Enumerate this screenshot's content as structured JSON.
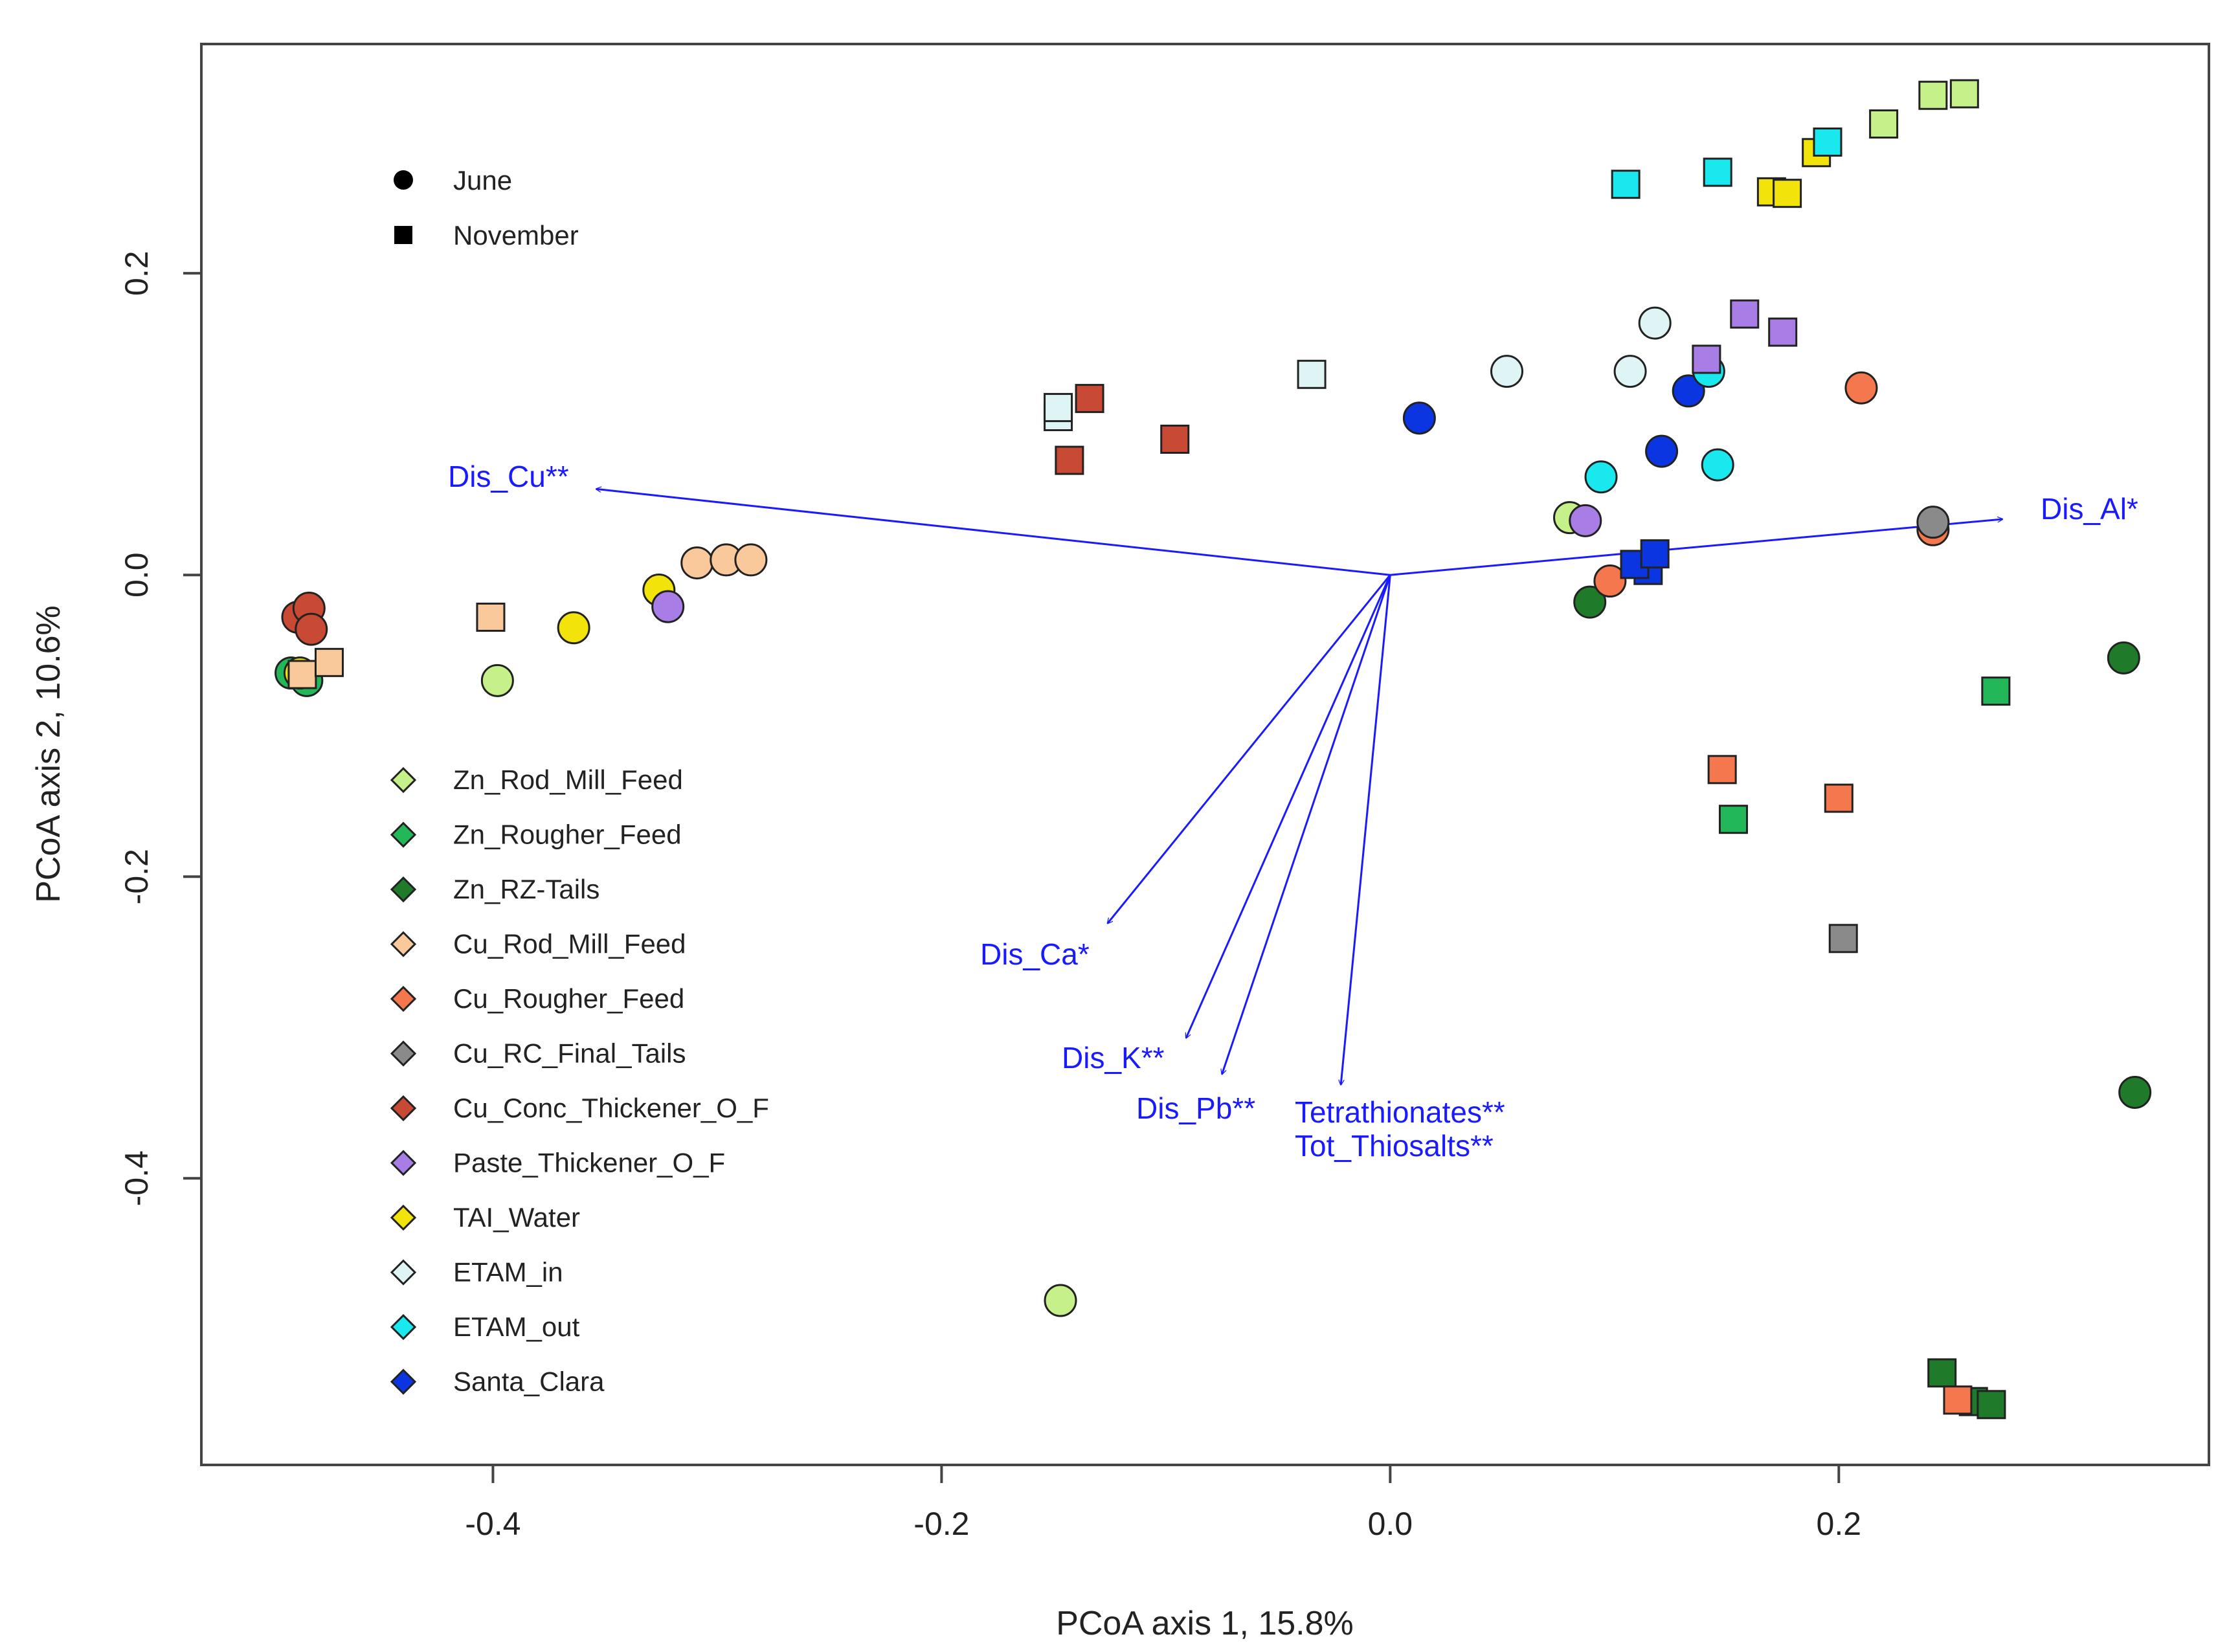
{
  "chart_data": {
    "type": "scatter",
    "title": "",
    "xlabel": "PCoA axis 1, 15.8%",
    "ylabel": "PCoA axis 2, 10.6%",
    "xlim": [
      -0.53,
      0.365
    ],
    "ylim": [
      -0.59,
      0.352
    ],
    "x_ticks": [
      -0.4,
      -0.2,
      0.0,
      0.2
    ],
    "x_tick_labels": [
      "-0.4",
      "-0.2",
      "0.0",
      "0.2"
    ],
    "y_ticks": [
      -0.4,
      -0.2,
      0.0,
      0.2
    ],
    "y_tick_labels": [
      "-0.4",
      "-0.2",
      "0.0",
      "0.2"
    ],
    "grid": false,
    "month_legend": [
      {
        "label": "June",
        "shape": "circle"
      },
      {
        "label": "November",
        "shape": "square"
      }
    ],
    "sample_types": [
      {
        "name": "Zn_Rod_Mill_Feed",
        "color": "#c5f08a"
      },
      {
        "name": "Zn_Rougher_Feed",
        "color": "#22b85a"
      },
      {
        "name": "Zn_RZ-Tails",
        "color": "#1f7a2a"
      },
      {
        "name": "Cu_Rod_Mill_Feed",
        "color": "#f9c99b"
      },
      {
        "name": "Cu_Rougher_Feed",
        "color": "#f4774d"
      },
      {
        "name": "Cu_RC_Final_Tails",
        "color": "#8a8a8a"
      },
      {
        "name": "Cu_Conc_Thickener_O_F",
        "color": "#c94a34"
      },
      {
        "name": "Paste_Thickener_O_F",
        "color": "#a87ee6"
      },
      {
        "name": "TAI_Water",
        "color": "#f2e40a"
      },
      {
        "name": "ETAM_in",
        "color": "#dff4f5"
      },
      {
        "name": "ETAM_out",
        "color": "#19e8ef"
      },
      {
        "name": "Santa_Clara",
        "color": "#0a35e0"
      }
    ],
    "points": [
      {
        "x": -0.49,
        "y": -0.065,
        "shape": "circle",
        "group": "Zn_Rougher_Feed"
      },
      {
        "x": -0.483,
        "y": -0.07,
        "shape": "circle",
        "group": "Zn_Rougher_Feed"
      },
      {
        "x": -0.486,
        "y": -0.065,
        "shape": "circle",
        "group": "TAI_Water"
      },
      {
        "x": -0.487,
        "y": -0.028,
        "shape": "circle",
        "group": "Cu_Conc_Thickener_O_F"
      },
      {
        "x": -0.482,
        "y": -0.022,
        "shape": "circle",
        "group": "Cu_Conc_Thickener_O_F"
      },
      {
        "x": -0.481,
        "y": -0.036,
        "shape": "circle",
        "group": "Cu_Conc_Thickener_O_F"
      },
      {
        "x": -0.485,
        "y": -0.066,
        "shape": "square",
        "group": "Cu_Rod_Mill_Feed"
      },
      {
        "x": -0.473,
        "y": -0.058,
        "shape": "square",
        "group": "Cu_Rod_Mill_Feed"
      },
      {
        "x": -0.401,
        "y": -0.028,
        "shape": "square",
        "group": "Cu_Rod_Mill_Feed"
      },
      {
        "x": -0.398,
        "y": -0.07,
        "shape": "circle",
        "group": "Zn_Rod_Mill_Feed"
      },
      {
        "x": -0.364,
        "y": -0.035,
        "shape": "circle",
        "group": "TAI_Water"
      },
      {
        "x": -0.326,
        "y": -0.01,
        "shape": "circle",
        "group": "TAI_Water"
      },
      {
        "x": -0.322,
        "y": -0.021,
        "shape": "circle",
        "group": "Paste_Thickener_O_F"
      },
      {
        "x": -0.309,
        "y": 0.008,
        "shape": "circle",
        "group": "Cu_Rod_Mill_Feed"
      },
      {
        "x": -0.296,
        "y": 0.01,
        "shape": "circle",
        "group": "Cu_Rod_Mill_Feed"
      },
      {
        "x": -0.285,
        "y": 0.01,
        "shape": "circle",
        "group": "Cu_Rod_Mill_Feed"
      },
      {
        "x": -0.148,
        "y": 0.105,
        "shape": "square",
        "group": "ETAM_in"
      },
      {
        "x": -0.148,
        "y": 0.111,
        "shape": "square",
        "group": "ETAM_in"
      },
      {
        "x": -0.134,
        "y": 0.117,
        "shape": "square",
        "group": "Cu_Conc_Thickener_O_F"
      },
      {
        "x": -0.143,
        "y": 0.076,
        "shape": "square",
        "group": "Cu_Conc_Thickener_O_F"
      },
      {
        "x": -0.096,
        "y": 0.09,
        "shape": "square",
        "group": "Cu_Conc_Thickener_O_F"
      },
      {
        "x": -0.035,
        "y": 0.133,
        "shape": "square",
        "group": "ETAM_in"
      },
      {
        "x": 0.013,
        "y": 0.104,
        "shape": "circle",
        "group": "Santa_Clara"
      },
      {
        "x": 0.052,
        "y": 0.135,
        "shape": "circle",
        "group": "ETAM_in"
      },
      {
        "x": -0.147,
        "y": -0.481,
        "shape": "circle",
        "group": "Zn_Rod_Mill_Feed"
      },
      {
        "x": 0.08,
        "y": 0.038,
        "shape": "circle",
        "group": "Zn_Rod_Mill_Feed"
      },
      {
        "x": 0.087,
        "y": 0.036,
        "shape": "circle",
        "group": "Paste_Thickener_O_F"
      },
      {
        "x": 0.094,
        "y": 0.065,
        "shape": "circle",
        "group": "ETAM_out"
      },
      {
        "x": 0.089,
        "y": -0.018,
        "shape": "circle",
        "group": "Zn_RZ-Tails"
      },
      {
        "x": 0.098,
        "y": -0.004,
        "shape": "circle",
        "group": "Cu_Rougher_Feed"
      },
      {
        "x": 0.107,
        "y": 0.135,
        "shape": "circle",
        "group": "ETAM_in"
      },
      {
        "x": 0.118,
        "y": 0.167,
        "shape": "circle",
        "group": "ETAM_in"
      },
      {
        "x": 0.121,
        "y": 0.082,
        "shape": "circle",
        "group": "Santa_Clara"
      },
      {
        "x": 0.133,
        "y": 0.122,
        "shape": "circle",
        "group": "Santa_Clara"
      },
      {
        "x": 0.142,
        "y": 0.135,
        "shape": "circle",
        "group": "ETAM_out"
      },
      {
        "x": 0.146,
        "y": 0.073,
        "shape": "circle",
        "group": "ETAM_out"
      },
      {
        "x": 0.21,
        "y": 0.124,
        "shape": "circle",
        "group": "Cu_Rougher_Feed"
      },
      {
        "x": 0.242,
        "y": 0.03,
        "shape": "circle",
        "group": "Cu_Rougher_Feed"
      },
      {
        "x": 0.242,
        "y": 0.035,
        "shape": "circle",
        "group": "Cu_RC_Final_Tails"
      },
      {
        "x": 0.327,
        "y": -0.055,
        "shape": "circle",
        "group": "Zn_RZ-Tails"
      },
      {
        "x": 0.332,
        "y": -0.343,
        "shape": "circle",
        "group": "Zn_RZ-Tails"
      },
      {
        "x": 0.105,
        "y": 0.259,
        "shape": "square",
        "group": "ETAM_out"
      },
      {
        "x": 0.146,
        "y": 0.267,
        "shape": "square",
        "group": "ETAM_out"
      },
      {
        "x": 0.17,
        "y": 0.254,
        "shape": "square",
        "group": "TAI_Water"
      },
      {
        "x": 0.177,
        "y": 0.253,
        "shape": "square",
        "group": "TAI_Water"
      },
      {
        "x": 0.19,
        "y": 0.28,
        "shape": "square",
        "group": "TAI_Water"
      },
      {
        "x": 0.195,
        "y": 0.287,
        "shape": "square",
        "group": "ETAM_out"
      },
      {
        "x": 0.22,
        "y": 0.299,
        "shape": "square",
        "group": "Zn_Rod_Mill_Feed"
      },
      {
        "x": 0.242,
        "y": 0.318,
        "shape": "square",
        "group": "Zn_Rod_Mill_Feed"
      },
      {
        "x": 0.256,
        "y": 0.319,
        "shape": "square",
        "group": "Zn_Rod_Mill_Feed"
      },
      {
        "x": 0.141,
        "y": 0.143,
        "shape": "square",
        "group": "Paste_Thickener_O_F"
      },
      {
        "x": 0.158,
        "y": 0.173,
        "shape": "square",
        "group": "Paste_Thickener_O_F"
      },
      {
        "x": 0.175,
        "y": 0.161,
        "shape": "square",
        "group": "Paste_Thickener_O_F"
      },
      {
        "x": 0.115,
        "y": 0.003,
        "shape": "square",
        "group": "Santa_Clara"
      },
      {
        "x": 0.109,
        "y": 0.007,
        "shape": "square",
        "group": "Santa_Clara"
      },
      {
        "x": 0.118,
        "y": 0.014,
        "shape": "square",
        "group": "Santa_Clara"
      },
      {
        "x": 0.148,
        "y": -0.129,
        "shape": "square",
        "group": "Cu_Rougher_Feed"
      },
      {
        "x": 0.2,
        "y": -0.148,
        "shape": "square",
        "group": "Cu_Rougher_Feed"
      },
      {
        "x": 0.153,
        "y": -0.162,
        "shape": "square",
        "group": "Zn_Rougher_Feed"
      },
      {
        "x": 0.202,
        "y": -0.241,
        "shape": "square",
        "group": "Cu_RC_Final_Tails"
      },
      {
        "x": 0.27,
        "y": -0.077,
        "shape": "square",
        "group": "Zn_Rougher_Feed"
      },
      {
        "x": 0.246,
        "y": -0.529,
        "shape": "square",
        "group": "Zn_RZ-Tails"
      },
      {
        "x": 0.26,
        "y": -0.548,
        "shape": "square",
        "group": "Zn_RZ-Tails"
      },
      {
        "x": 0.268,
        "y": -0.55,
        "shape": "square",
        "group": "Zn_RZ-Tails"
      },
      {
        "x": 0.253,
        "y": -0.547,
        "shape": "square",
        "group": "Cu_Rougher_Feed"
      }
    ],
    "vectors": [
      {
        "label": "Dis_Cu**",
        "x": -0.354,
        "y": 0.057
      },
      {
        "label": "Dis_Al*",
        "x": 0.273,
        "y": 0.037
      },
      {
        "label": "Dis_Ca*",
        "x": -0.126,
        "y": -0.231
      },
      {
        "label": "Dis_K**",
        "x": -0.091,
        "y": -0.307
      },
      {
        "label": "Dis_Pb**",
        "x": -0.075,
        "y": -0.331
      },
      {
        "label": "Tetrathionates**",
        "x": -0.022,
        "y": -0.338
      },
      {
        "label": "Tot_Thiosalts**",
        "x": -0.022,
        "y": -0.338
      }
    ]
  }
}
